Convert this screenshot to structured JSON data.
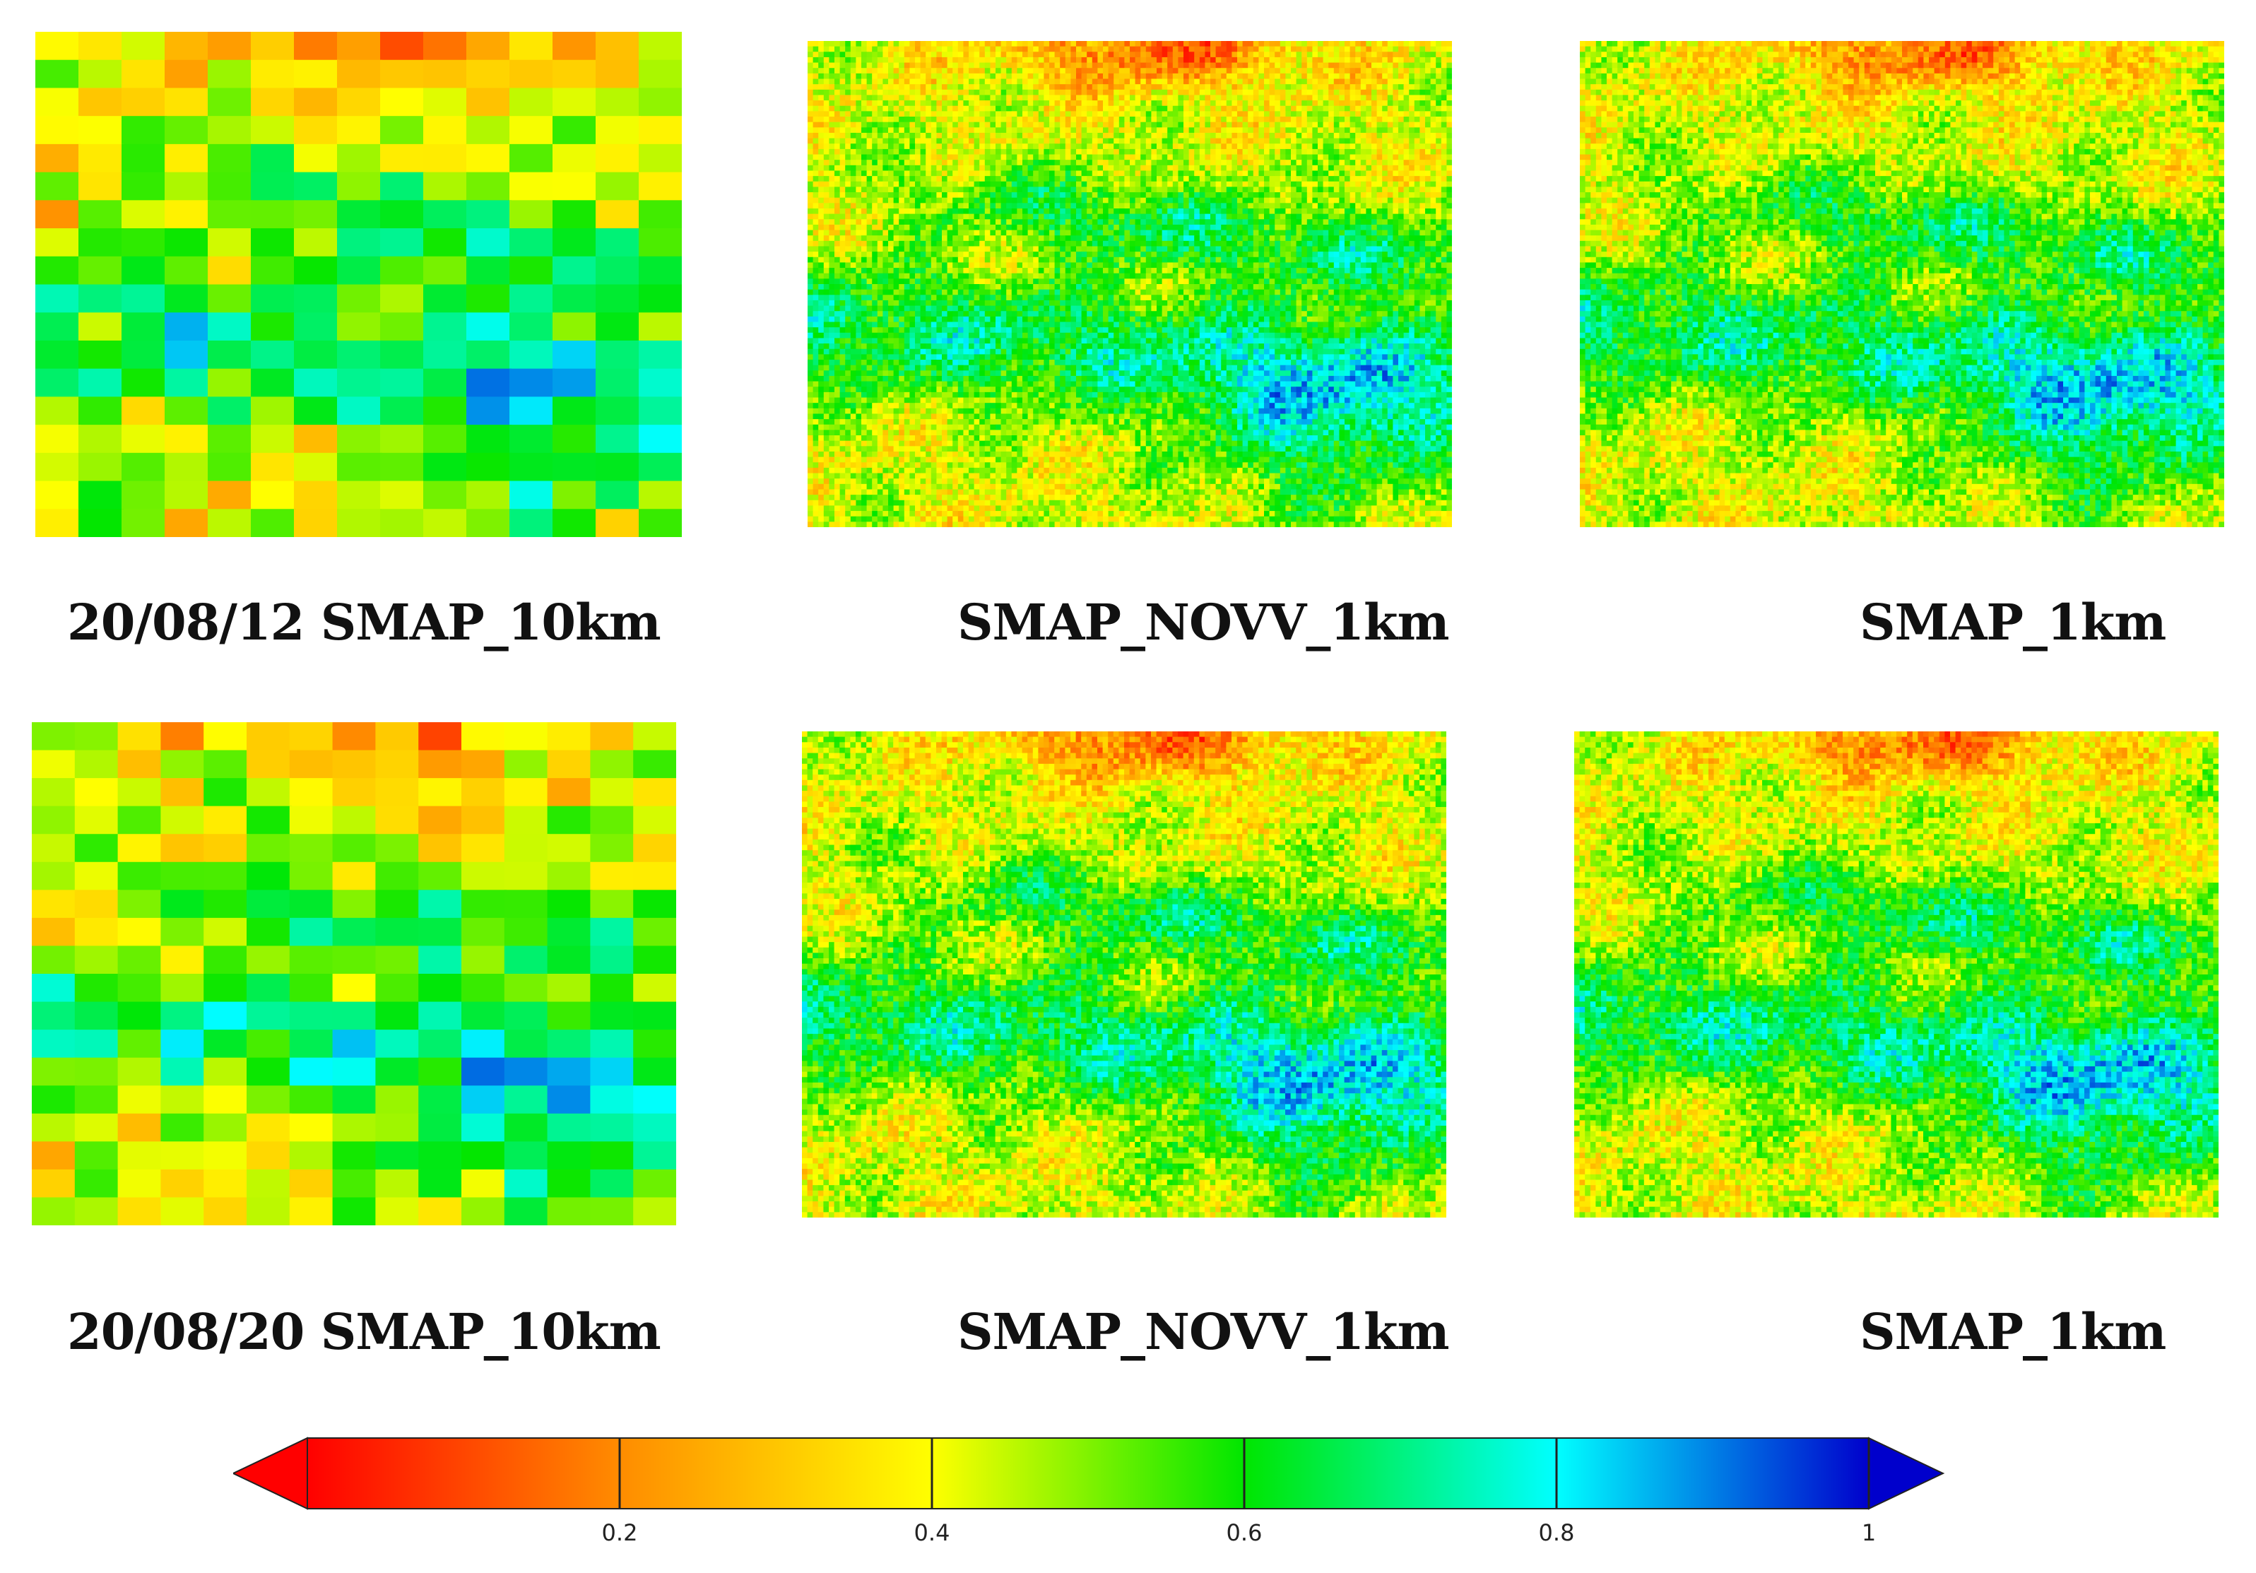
{
  "rows": [
    {
      "panels": [
        {
          "caption": "20/08/12 SMAP_10km",
          "kind": "coarse",
          "seed": 11
        },
        {
          "caption": "SMAP_NOVV_1km",
          "kind": "fine",
          "seed": 21
        },
        {
          "caption": "SMAP_1km",
          "kind": "fine",
          "seed": 31
        }
      ]
    },
    {
      "panels": [
        {
          "caption": "20/08/20 SMAP_10km",
          "kind": "coarse",
          "seed": 41
        },
        {
          "caption": "SMAP_NOVV_1km",
          "kind": "fine",
          "seed": 51
        },
        {
          "caption": "SMAP_1km",
          "kind": "fine",
          "seed": 61
        }
      ]
    }
  ],
  "colorbar": {
    "range": [
      0,
      1
    ],
    "ticks": [
      0.2,
      0.4,
      0.6,
      0.8,
      1
    ],
    "tick_labels": [
      "0.2",
      "0.4",
      "0.6",
      "0.8",
      "1"
    ],
    "extend": "both",
    "colormap": [
      "#ff0000",
      "#ff8c00",
      "#ffff00",
      "#00e600",
      "#00ffff",
      "#0000cc"
    ]
  }
}
